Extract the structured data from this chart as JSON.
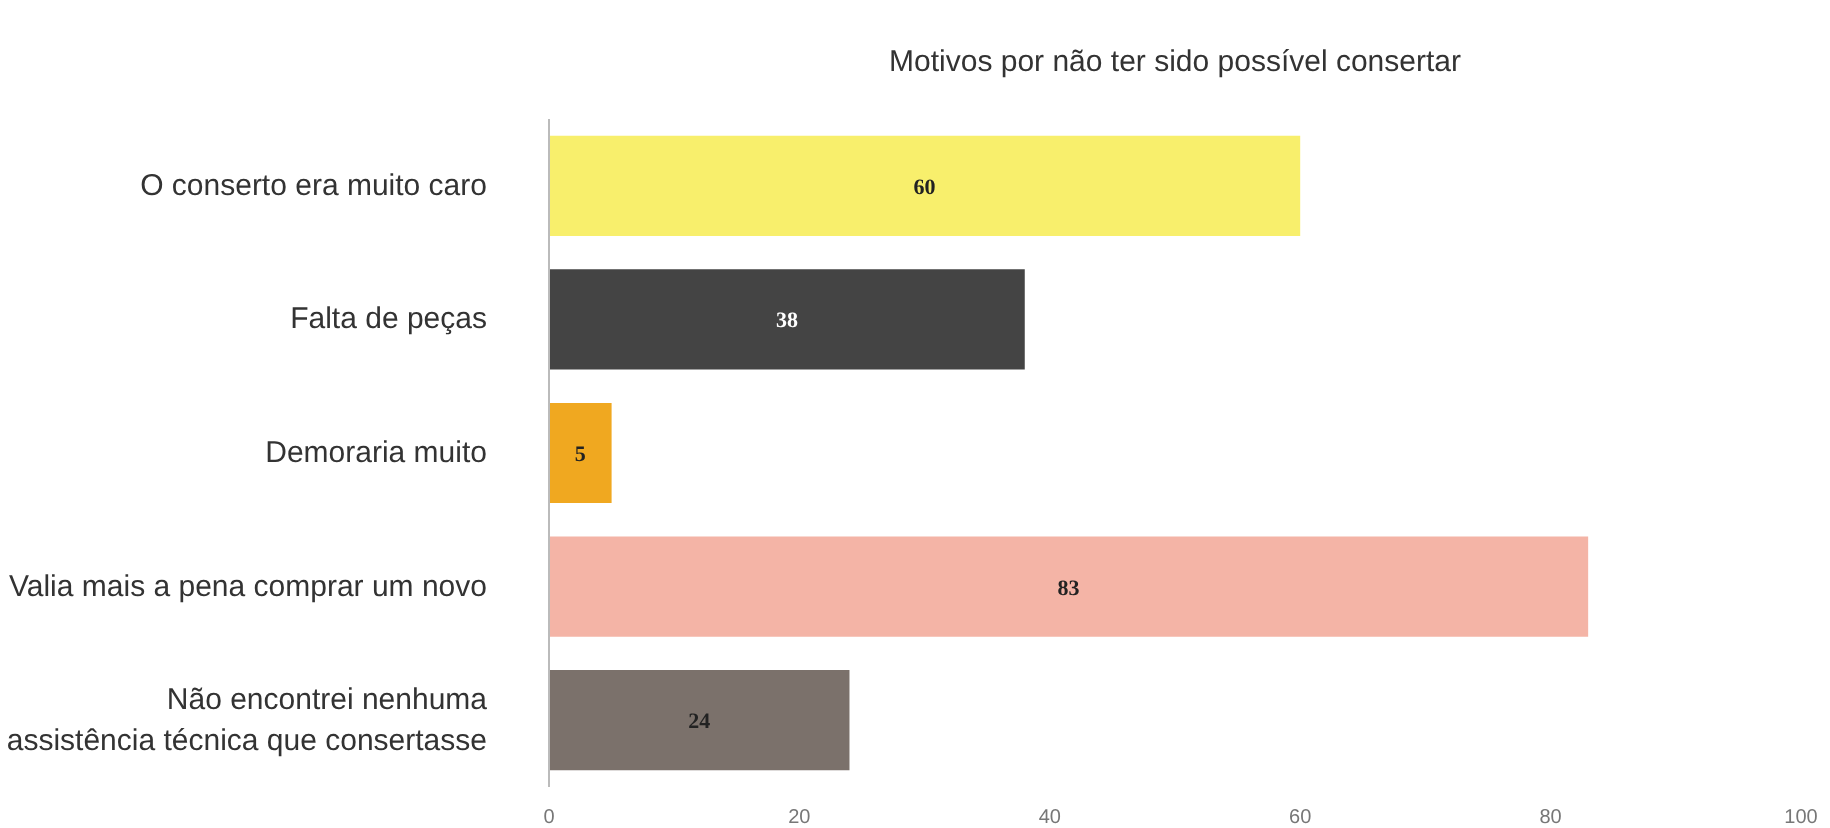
{
  "chart_data": {
    "type": "bar",
    "orientation": "horizontal",
    "title": "Motivos por não ter sido possível consertar",
    "categories": [
      "O conserto era muito caro",
      "Falta de peças",
      "Demoraria muito",
      "Valia mais a pena comprar um novo",
      "Não encontrei nenhuma\nassistência técnica que consertasse"
    ],
    "values": [
      60,
      38,
      5,
      83,
      24
    ],
    "colors": [
      "#f8ef6c",
      "#444444",
      "#f0a820",
      "#f4b4a6",
      "#7b716b"
    ],
    "xlim": [
      0,
      100
    ],
    "xticks": [
      0,
      20,
      40,
      60,
      80,
      100
    ],
    "grid": false,
    "data_labels": true
  }
}
